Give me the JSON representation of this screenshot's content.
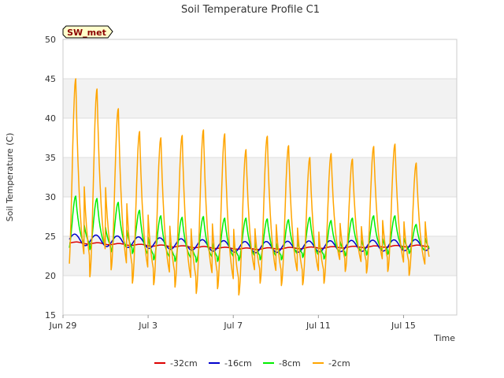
{
  "chart_data": {
    "type": "line",
    "title": "Soil Temperature Profile C1",
    "badge": "SW_met",
    "xlabel": "Time",
    "ylabel": "Soil Temperature (C)",
    "xlim_days": [
      0,
      18.5
    ],
    "ylim": [
      15,
      50
    ],
    "grid": "horizontal, alternating light gray bands",
    "legend_position": "bottom-center",
    "x_tick_labels": [
      "Jun 29",
      "Jul 3",
      "Jul 7",
      "Jul 11",
      "Jul 15"
    ],
    "x_tick_days": [
      0,
      4,
      8,
      12,
      16
    ],
    "y_ticks": [
      15,
      20,
      25,
      30,
      35,
      40,
      45,
      50
    ],
    "series": [
      {
        "name": "-32cm",
        "color": "#dd0000",
        "days_start": 0.3,
        "days_end": 17.2,
        "mean_start": 24.2,
        "mean_mid": 23.4,
        "mean_end": 23.8,
        "amplitude": 0.1,
        "phase_day": 0.4
      },
      {
        "name": "-16cm",
        "color": "#0000cc",
        "days_start": 0.3,
        "days_end": 17.2,
        "mean_start": 24.6,
        "mean_mid": 23.6,
        "mean_end": 23.9,
        "amplitude": 0.7,
        "phase_day": 0.3
      },
      {
        "name": "-8cm",
        "color": "#00ee00",
        "days_start": 0.3,
        "days_end": 17.2,
        "peaks": [
          30.1,
          29.8,
          29.3,
          28.3,
          27.6,
          27.4,
          27.5,
          27.3,
          27.3,
          27.2,
          27.1,
          27.4,
          27.0,
          27.3,
          27.6,
          27.6,
          26.5
        ],
        "troughs": [
          23.2,
          23.3,
          23.0,
          22.8,
          22.0,
          21.8,
          21.7,
          21.8,
          21.9,
          22.0,
          22.0,
          22.3,
          22.1,
          22.5,
          22.6,
          22.7,
          22.8
        ]
      },
      {
        "name": "-2cm",
        "color": "#ffa500",
        "days_start": 0.3,
        "days_end": 17.2,
        "peaks": [
          45.0,
          43.7,
          41.2,
          38.3,
          37.5,
          37.8,
          38.5,
          38.0,
          36.0,
          37.7,
          36.5,
          35.0,
          35.5,
          34.8,
          36.4,
          36.7,
          34.3
        ],
        "troughs": [
          20.3,
          19.8,
          20.7,
          19.0,
          18.8,
          18.5,
          17.7,
          18.3,
          17.5,
          19.0,
          18.7,
          18.8,
          19.0,
          20.5,
          20.3,
          20.5,
          20.0
        ]
      }
    ]
  }
}
